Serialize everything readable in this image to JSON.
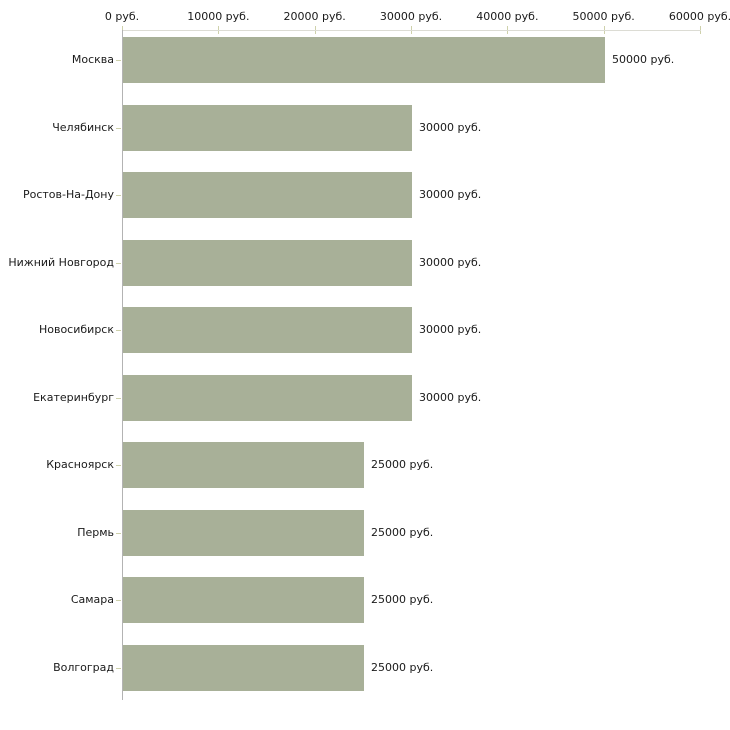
{
  "chart_data": {
    "type": "bar",
    "orientation": "horizontal",
    "categories": [
      "Москва",
      "Челябинск",
      "Ростов-На-Дону",
      "Нижний Новгород",
      "Новосибирск",
      "Екатеринбург",
      "Красноярск",
      "Пермь",
      "Самара",
      "Волгоград"
    ],
    "values": [
      50000,
      30000,
      30000,
      30000,
      30000,
      30000,
      25000,
      25000,
      25000,
      25000
    ],
    "value_labels": [
      "50000 руб.",
      "30000 руб.",
      "30000 руб.",
      "30000 руб.",
      "30000 руб.",
      "30000 руб.",
      "25000 руб.",
      "25000 руб.",
      "25000 руб.",
      "25000 руб."
    ],
    "x_ticks": {
      "values": [
        0,
        10000,
        20000,
        30000,
        40000,
        50000,
        60000
      ],
      "labels": [
        "0 руб.",
        "10000 руб.",
        "20000 руб.",
        "30000 руб.",
        "40000 руб.",
        "50000 руб.",
        "60000 руб."
      ]
    },
    "xlim": [
      0,
      60000
    ],
    "unit": "руб.",
    "title": "",
    "xlabel": "",
    "ylabel": "",
    "legend": null,
    "grid": false,
    "colors": {
      "bar": "#a8b098",
      "axis_line": "#dcdcd4",
      "axis_vline": "#b3b3b3",
      "tick": "#ced1ab",
      "text": "#1a1a1a",
      "background": "#ffffff"
    }
  }
}
